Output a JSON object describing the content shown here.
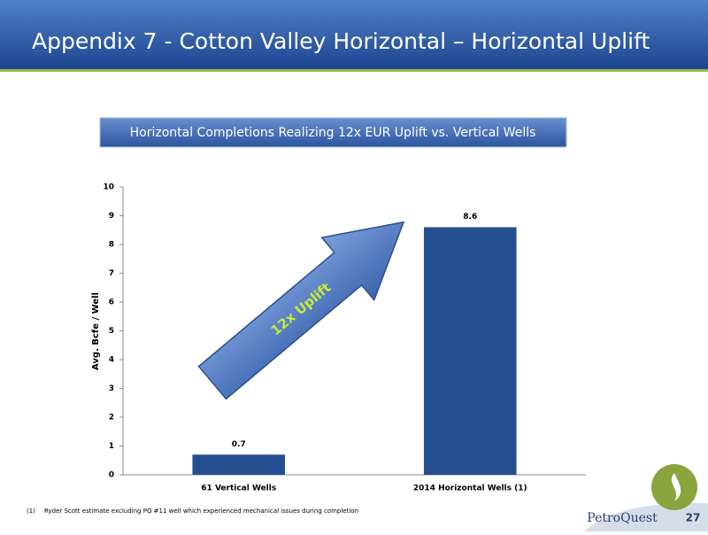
{
  "slide": {
    "title": "Appendix 7 - Cotton Valley Horizontal – Horizontal Uplift",
    "page_number": "27",
    "logo": "PetroQuest"
  },
  "footnote": {
    "marker": "(1)",
    "text": "Ryder Scott estimate excluding PQ #11 well which experienced mechanical issues during completion"
  },
  "chart_data": {
    "type": "bar",
    "title": "Horizontal Completions Realizing 12x EUR Uplift vs. Vertical Wells",
    "y_label": "Avg. Bcfe / Well",
    "annotation": "12x Uplift",
    "categories": [
      "61 Vertical Wells",
      "2014 Horizontal Wells (1)"
    ],
    "values": [
      0.7,
      8.6
    ],
    "color": "#234f91",
    "ylim": [
      0,
      10
    ],
    "yticks": [
      0,
      1,
      2,
      3,
      4,
      5,
      6,
      7,
      8,
      9,
      10
    ]
  }
}
